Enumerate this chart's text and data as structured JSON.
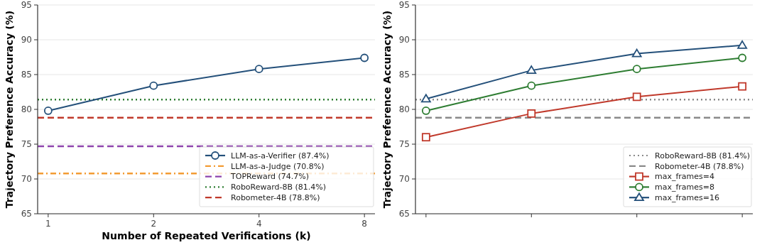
{
  "chart_data": [
    {
      "type": "line",
      "xlabel": "Number of Repeated Verifications (k)",
      "ylabel": "Trajectory Preference Accuracy (%)",
      "categories": [
        "1",
        "2",
        "4",
        "8"
      ],
      "ylim": [
        65,
        95
      ],
      "yticks": [
        65,
        70,
        75,
        80,
        85,
        90,
        95
      ],
      "grid": "y",
      "legend": "bottom right",
      "series": [
        {
          "name": "LLM-as-a-Verifier (87.4%)",
          "color": "#24507a",
          "marker": "circle",
          "values": [
            79.8,
            83.4,
            85.8,
            87.4
          ]
        }
      ],
      "ref_lines": [
        {
          "axis": "y",
          "value": 70.8,
          "label": "LLM-as-a-Judge (70.8%)",
          "color": "#f39c34",
          "line_style": "dashdot"
        },
        {
          "axis": "y",
          "value": 74.7,
          "label": "TOPReward (74.7%)",
          "color": "#8e44ad",
          "line_style": "dashed"
        },
        {
          "axis": "y",
          "value": 81.4,
          "label": "RoboReward-8B (81.4%)",
          "color": "#2e7d32",
          "line_style": "dotted"
        },
        {
          "axis": "y",
          "value": 78.8,
          "label": "Robometer-4B (78.8%)",
          "color": "#c0392b",
          "line_style": "dashed"
        }
      ]
    },
    {
      "type": "line",
      "ylabel": "Trajectory Preference Accuracy (%)",
      "categories": [
        null,
        null,
        null,
        null
      ],
      "ylim": [
        65,
        95
      ],
      "yticks": [
        65,
        70,
        75,
        80,
        85,
        90,
        95
      ],
      "grid": "y",
      "legend": "bottom right",
      "tick_labels": "y",
      "ref_lines": [
        {
          "axis": "y",
          "value": 81.4,
          "label": "RoboReward-8B (81.4%)",
          "color": "#8a8a8a",
          "line_style": "dotted"
        },
        {
          "axis": "y",
          "value": 78.8,
          "label": "Robometer-4B (78.8%)",
          "color": "#8a8a8a",
          "line_style": "dashed"
        }
      ],
      "series": [
        {
          "name": "max_frames=4",
          "color": "#c0392b",
          "marker": "square",
          "values": [
            76.0,
            79.4,
            81.8,
            83.3
          ]
        },
        {
          "name": "max_frames=8",
          "color": "#2e7d32",
          "marker": "circle",
          "values": [
            79.8,
            83.4,
            85.8,
            87.4
          ]
        },
        {
          "name": "max_frames=16",
          "color": "#24507a",
          "marker": "triangle",
          "values": [
            81.5,
            85.6,
            88.0,
            89.2
          ]
        }
      ]
    }
  ]
}
